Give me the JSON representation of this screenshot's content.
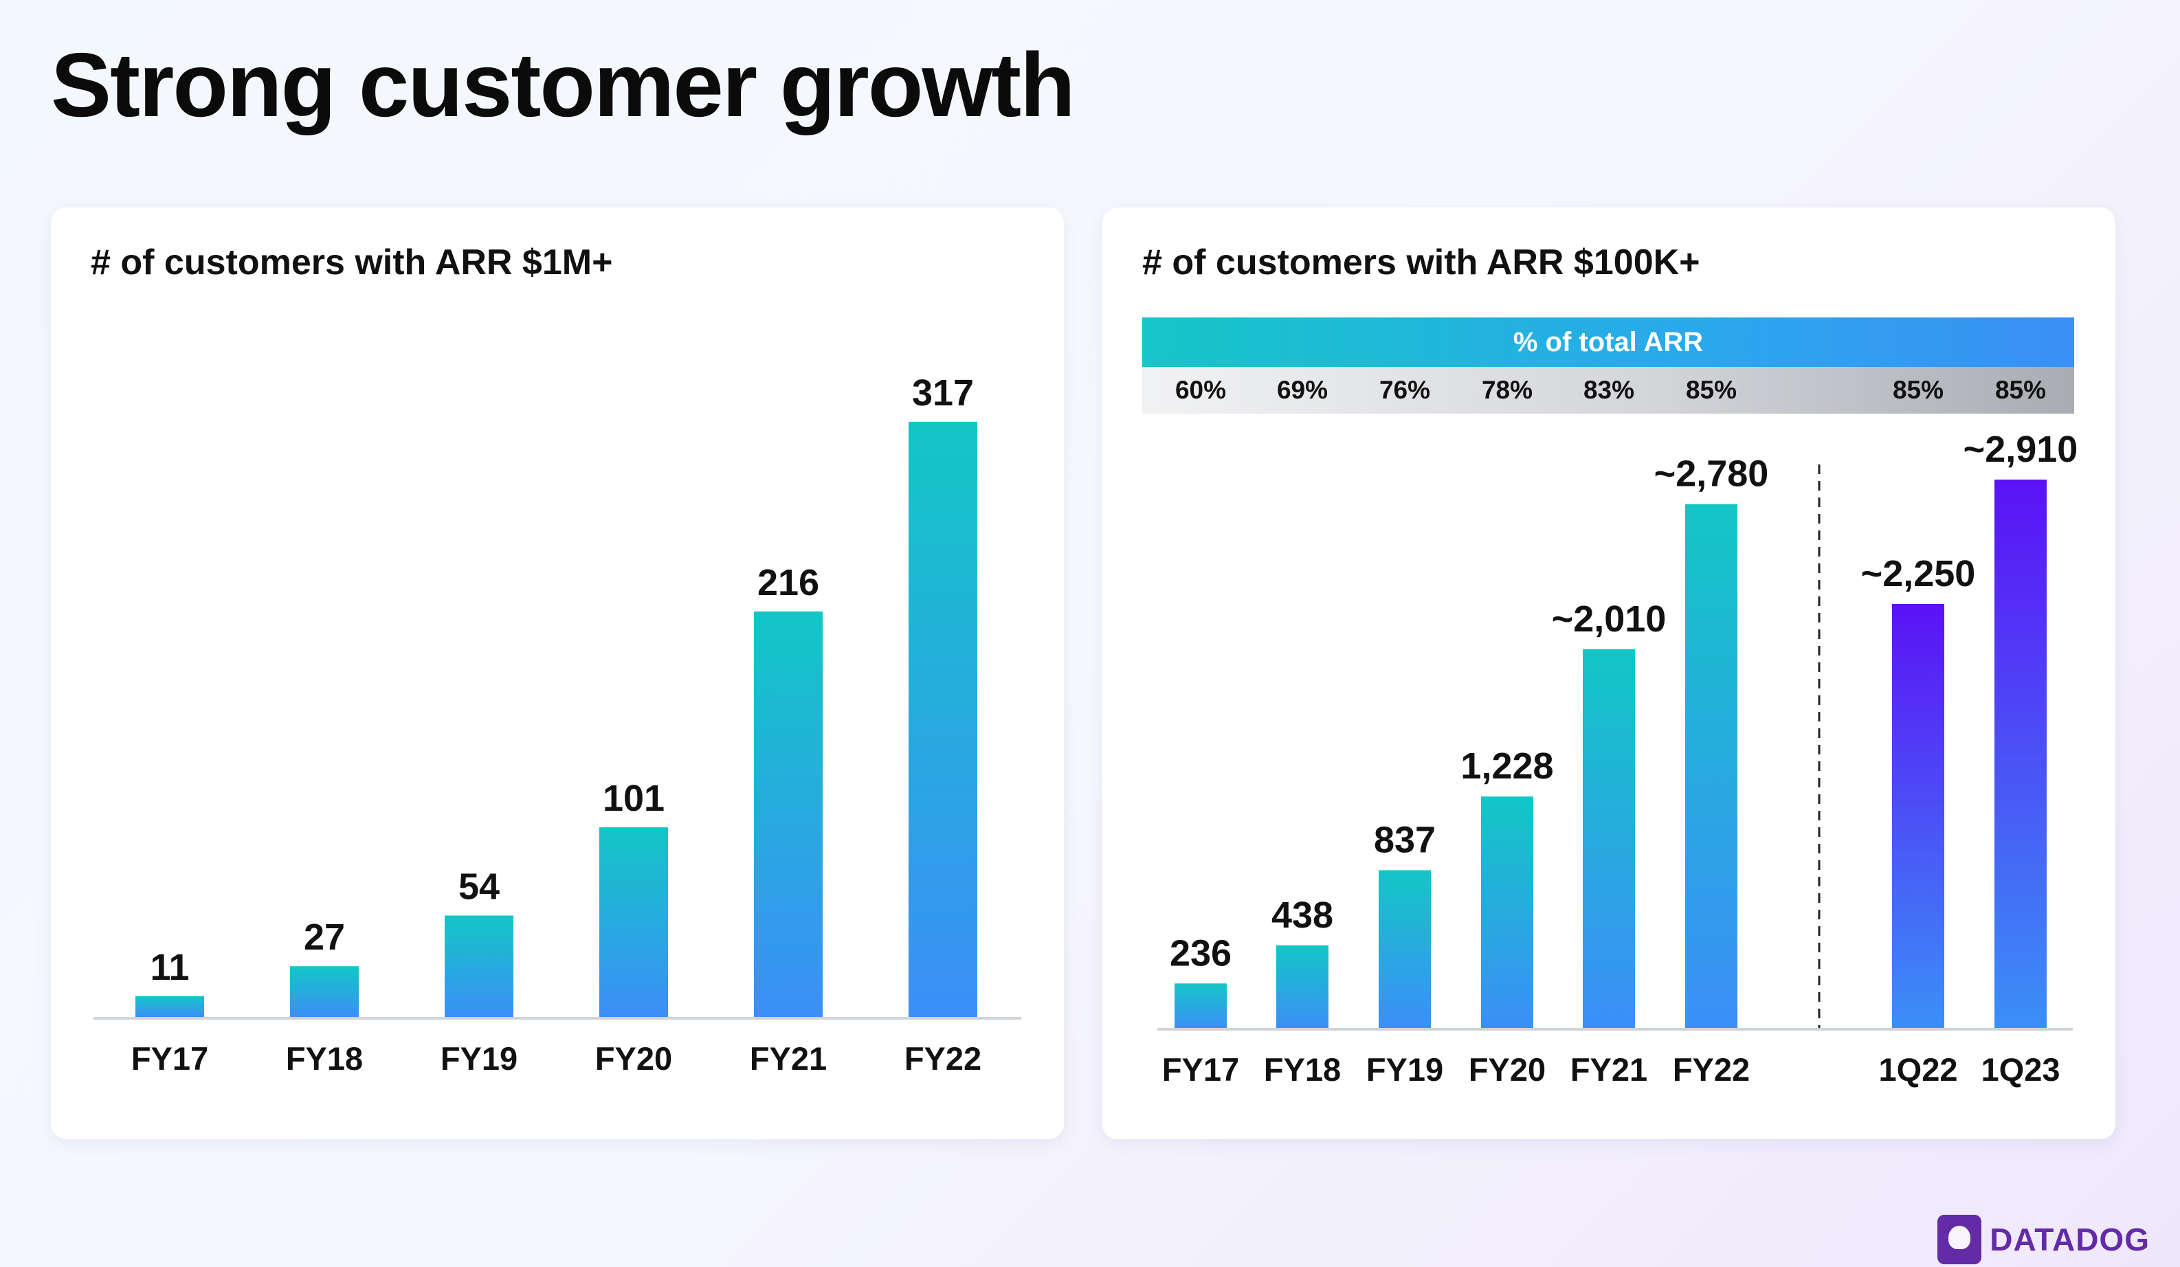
{
  "page": {
    "title": "Strong customer growth"
  },
  "chart_data": [
    {
      "type": "bar",
      "title": "# of customers with ARR $1M+",
      "categories": [
        "FY17",
        "FY18",
        "FY19",
        "FY20",
        "FY21",
        "FY22"
      ],
      "values": [
        11,
        27,
        54,
        101,
        216,
        317
      ],
      "value_labels": [
        "11",
        "27",
        "54",
        "101",
        "216",
        "317"
      ],
      "ylim": [
        0,
        317
      ],
      "grid": false,
      "colors": {
        "top": "#13c6c6",
        "bottom": "#3b8ff7"
      }
    },
    {
      "type": "bar",
      "title": "# of customers with ARR $100K+",
      "categories": [
        "FY17",
        "FY18",
        "FY19",
        "FY20",
        "FY21",
        "FY22",
        "1Q22",
        "1Q23"
      ],
      "values": [
        236,
        438,
        837,
        1228,
        2010,
        2780,
        2250,
        2910
      ],
      "value_labels": [
        "236",
        "438",
        "837",
        "1,228",
        "~2,010",
        "~2,780",
        "~2,250",
        "~2,910"
      ],
      "ylim": [
        0,
        2910
      ],
      "grid": false,
      "annual_colors": {
        "top": "#13c6c6",
        "bottom": "#3b8ff7"
      },
      "quarter_colors": {
        "top": "#5b12f5",
        "bottom": "#3b8ff7"
      },
      "arr_header": {
        "label": "% of total ARR",
        "values": [
          "60%",
          "69%",
          "76%",
          "78%",
          "83%",
          "85%",
          "85%",
          "85%"
        ]
      }
    }
  ],
  "logo": {
    "text": "DATADOG",
    "color": "#632ca6"
  }
}
